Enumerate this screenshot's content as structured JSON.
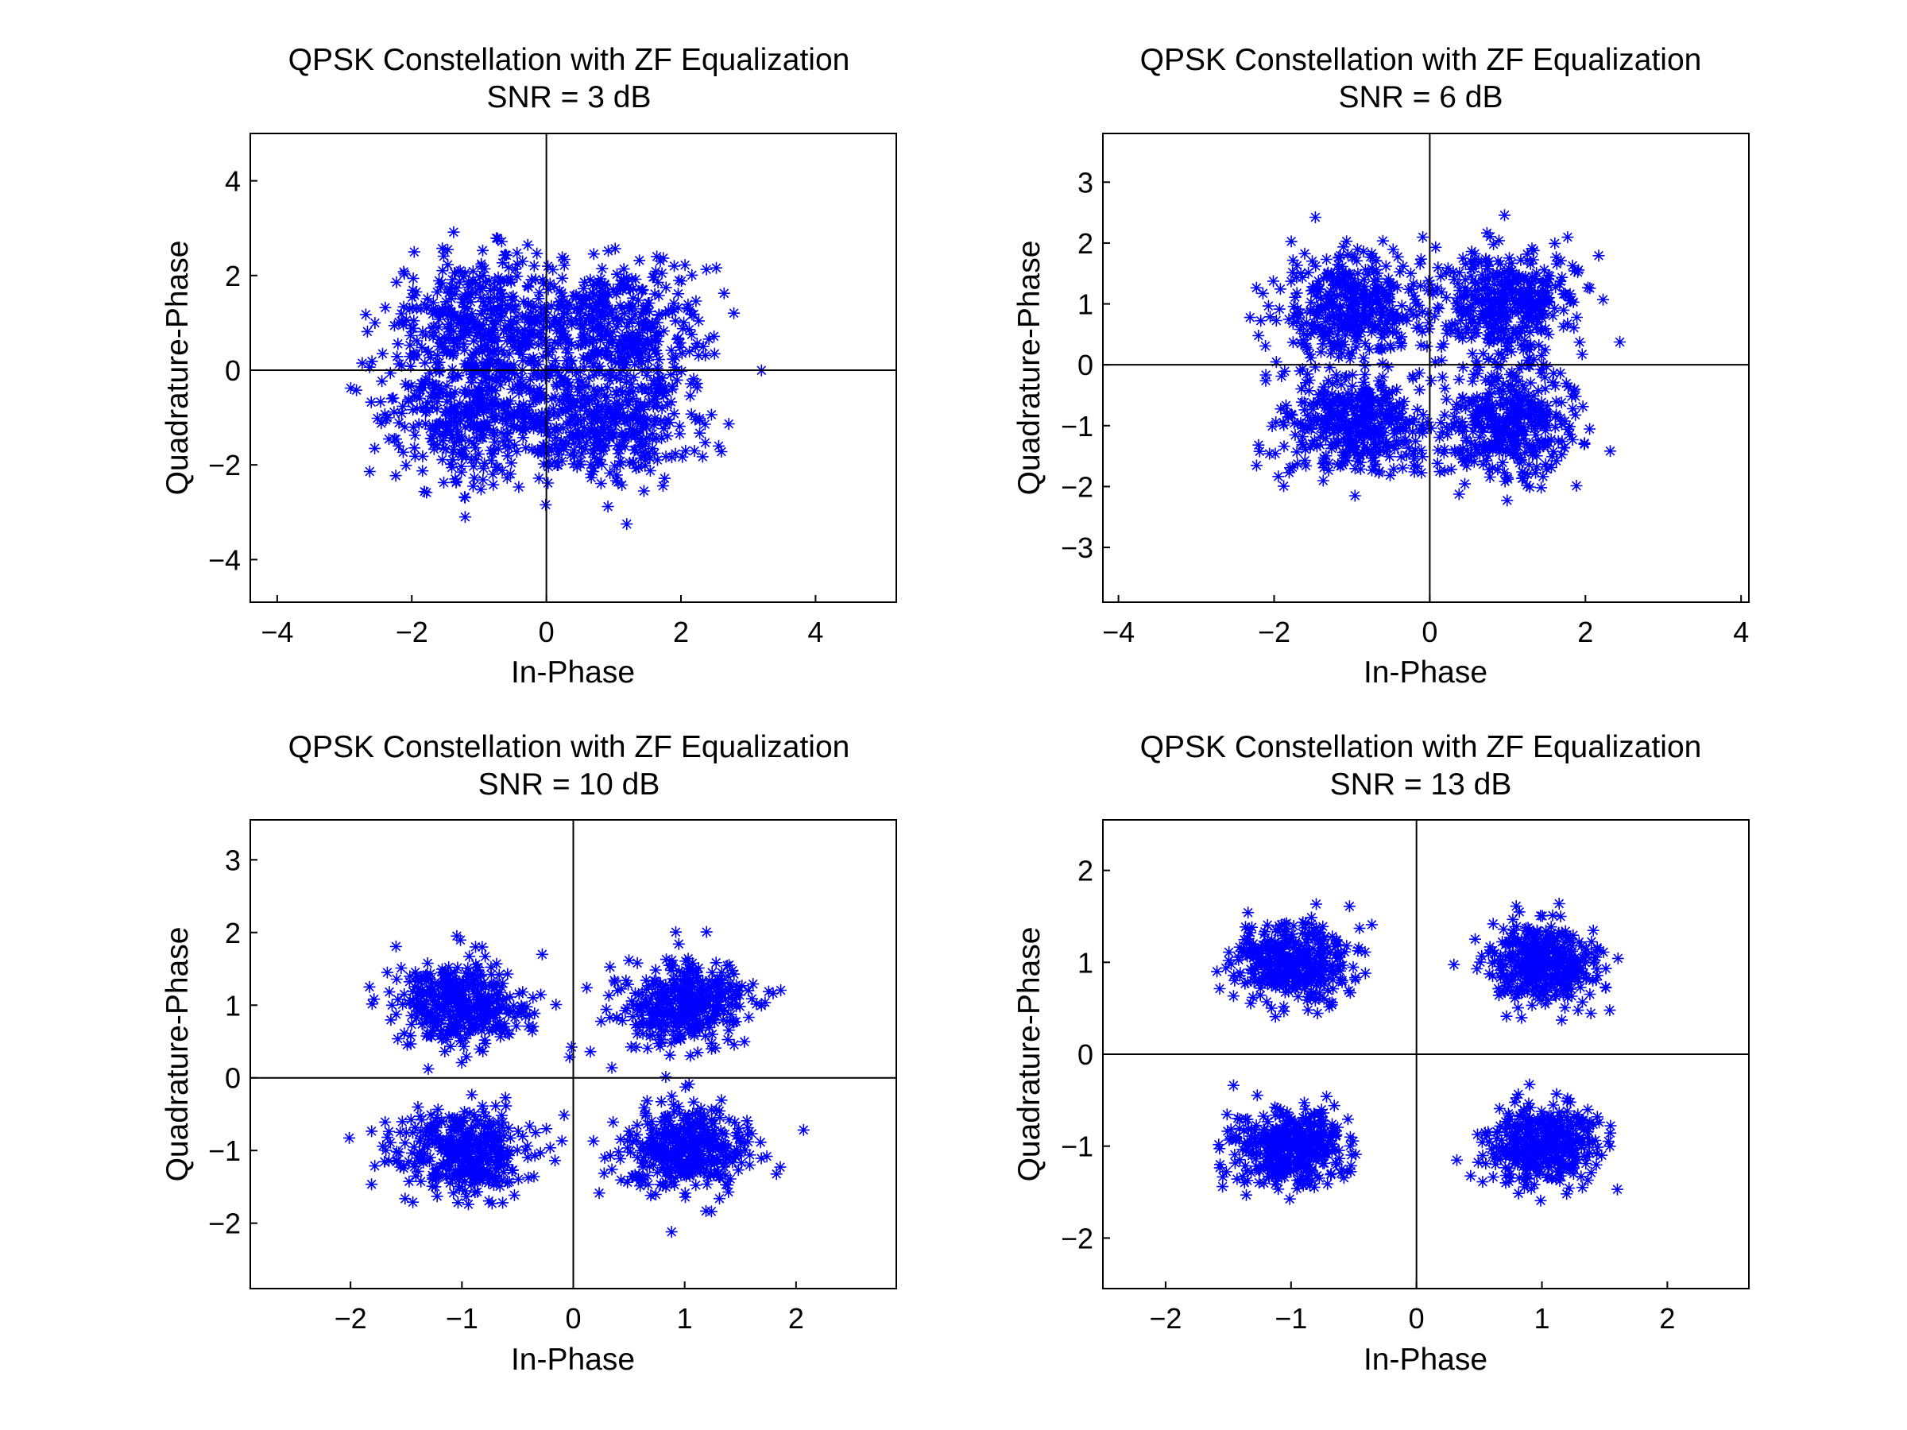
{
  "figure": {
    "background": "#ffffff",
    "marker_color": "#0000ff",
    "marker_symbol": "asterisk"
  },
  "chart_data": [
    {
      "type": "scatter",
      "title": "QPSK Constellation with ZF Equalization",
      "subtitle": "SNR = 3 dB",
      "xlabel": "In-Phase",
      "ylabel": "Quadrature-Phase",
      "xlim": [
        -4.4,
        5.2
      ],
      "ylim": [
        -4.9,
        5.0
      ],
      "xticks": [
        -4,
        -2,
        0,
        2,
        4
      ],
      "yticks": [
        -4,
        -2,
        0,
        2,
        4
      ],
      "grid": false,
      "legend": "none",
      "cluster_centers": [
        [
          -1,
          1
        ],
        [
          1,
          1
        ],
        [
          -1,
          -1
        ],
        [
          1,
          -1
        ]
      ],
      "noise_sigma": 0.7,
      "points_per_cluster": 400,
      "series": [
        {
          "symbol": "*",
          "color": "#0000ff"
        }
      ]
    },
    {
      "type": "scatter",
      "title": "QPSK Constellation with ZF Equalization",
      "subtitle": "SNR = 6 dB",
      "xlabel": "In-Phase",
      "ylabel": "Quadrature-Phase",
      "xlim": [
        -4.2,
        4.1
      ],
      "ylim": [
        -3.9,
        3.8
      ],
      "xticks": [
        -4,
        -2,
        0,
        2,
        4
      ],
      "yticks": [
        -3,
        -2,
        -1,
        0,
        1,
        2,
        3
      ],
      "grid": false,
      "legend": "none",
      "cluster_centers": [
        [
          -1,
          1
        ],
        [
          1,
          1
        ],
        [
          -1,
          -1
        ],
        [
          1,
          -1
        ]
      ],
      "noise_sigma": 0.45,
      "points_per_cluster": 400,
      "series": [
        {
          "symbol": "*",
          "color": "#0000ff"
        }
      ]
    },
    {
      "type": "scatter",
      "title": "QPSK Constellation with ZF Equalization",
      "subtitle": "SNR = 10 dB",
      "xlabel": "In-Phase",
      "ylabel": "Quadrature-Phase",
      "xlim": [
        -2.9,
        2.9
      ],
      "ylim": [
        -2.9,
        3.55
      ],
      "xticks": [
        -2,
        -1,
        0,
        1,
        2
      ],
      "yticks": [
        -2,
        -1,
        0,
        1,
        2,
        3
      ],
      "grid": false,
      "legend": "none",
      "cluster_centers": [
        [
          -1,
          1
        ],
        [
          1,
          1
        ],
        [
          -1,
          -1
        ],
        [
          1,
          -1
        ]
      ],
      "noise_sigma": 0.3,
      "points_per_cluster": 400,
      "series": [
        {
          "symbol": "*",
          "color": "#0000ff"
        }
      ]
    },
    {
      "type": "scatter",
      "title": "QPSK Constellation with ZF Equalization",
      "subtitle": "SNR = 13 dB",
      "xlabel": "In-Phase",
      "ylabel": "Quadrature-Phase",
      "xlim": [
        -2.5,
        2.65
      ],
      "ylim": [
        -2.55,
        2.55
      ],
      "xticks": [
        -2,
        -1,
        0,
        1,
        2
      ],
      "yticks": [
        -2,
        -1,
        0,
        1,
        2
      ],
      "grid": false,
      "legend": "none",
      "cluster_centers": [
        [
          -1,
          1
        ],
        [
          1,
          1
        ],
        [
          -1,
          -1
        ],
        [
          1,
          -1
        ]
      ],
      "noise_sigma": 0.22,
      "points_per_cluster": 400,
      "series": [
        {
          "symbol": "*",
          "color": "#0000ff"
        }
      ]
    }
  ]
}
